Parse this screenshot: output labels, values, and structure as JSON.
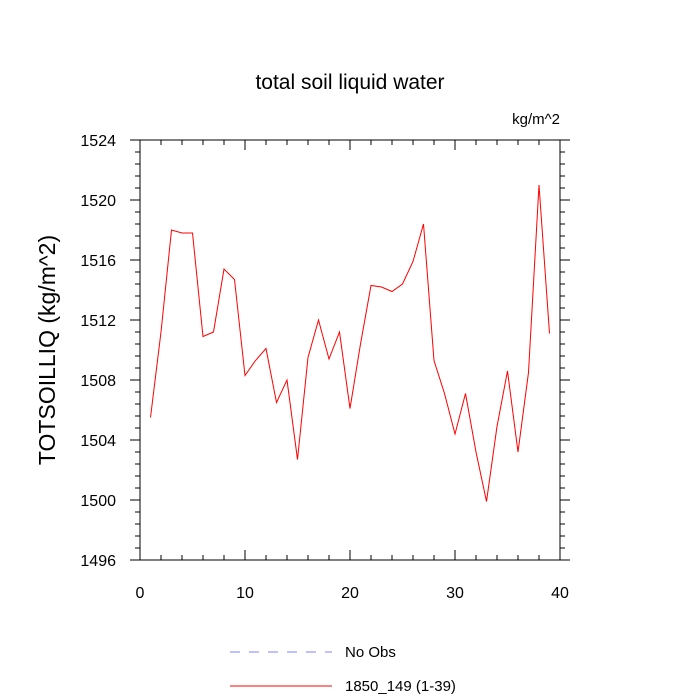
{
  "chart_data": {
    "type": "line",
    "title": "total soil liquid water",
    "units": "kg/m^2",
    "ylabel": "TOTSOILLIQ  (kg/m^2)",
    "xlabel": "",
    "xlim": [
      0,
      40
    ],
    "ylim": [
      1496,
      1524
    ],
    "x_ticks": [
      0,
      10,
      20,
      30,
      40
    ],
    "y_ticks": [
      1496,
      1500,
      1504,
      1508,
      1512,
      1516,
      1520,
      1524
    ],
    "x_minor_step": 2,
    "y_minor_step": 0.8,
    "series": [
      {
        "name": "1850_149 (1-39)",
        "color": "#ff0000",
        "style": "solid",
        "x": [
          1,
          2,
          3,
          4,
          5,
          6,
          7,
          8,
          9,
          10,
          11,
          12,
          13,
          14,
          15,
          16,
          17,
          18,
          19,
          20,
          21,
          22,
          23,
          24,
          25,
          26,
          27,
          28,
          29,
          30,
          31,
          32,
          33,
          34,
          35,
          36,
          37,
          38,
          39
        ],
        "values": [
          1505.5,
          1511.2,
          1518.0,
          1517.8,
          1517.8,
          1510.9,
          1511.2,
          1515.4,
          1514.7,
          1508.3,
          1509.3,
          1510.1,
          1506.5,
          1508.0,
          1502.7,
          1509.5,
          1512.0,
          1509.4,
          1511.2,
          1506.1,
          1510.4,
          1514.3,
          1514.2,
          1513.9,
          1514.4,
          1515.9,
          1518.4,
          1509.3,
          1507.1,
          1504.4,
          1507.1,
          1503.2,
          1499.9,
          1504.9,
          1508.6,
          1503.2,
          1508.5,
          1521.0,
          1511.1
        ]
      }
    ],
    "legend": [
      {
        "label": "No Obs",
        "color": "#8080ff",
        "style": "dashed"
      },
      {
        "label": "1850_149 (1-39)",
        "color": "#ff0000",
        "style": "solid"
      }
    ],
    "legend_position": "bottom-center"
  }
}
